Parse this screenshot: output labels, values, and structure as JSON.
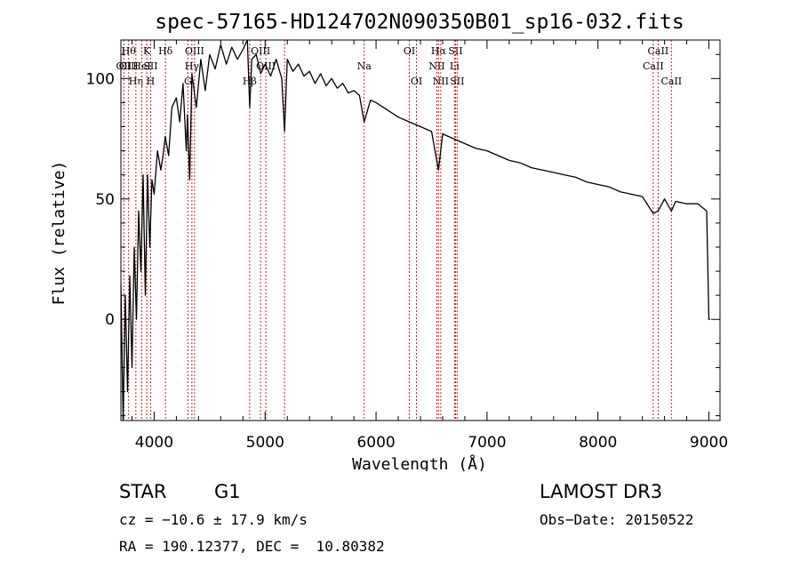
{
  "chart_data": {
    "type": "line",
    "title": "spec-57165-HD124702N090350B01_sp16-032.fits",
    "xlabel": "Wavelength (Å)",
    "ylabel": "Flux (relative)",
    "xlim": [
      3700,
      9100
    ],
    "ylim": [
      -42,
      116
    ],
    "xticks": [
      4000,
      5000,
      6000,
      7000,
      8000,
      9000
    ],
    "yticks": [
      0,
      50,
      100
    ],
    "grid": false,
    "colors": {
      "spectrum": "#000000",
      "lines": "#cc2222",
      "frame": "#000000"
    },
    "series": [
      {
        "name": "spectrum",
        "x": [
          3700,
          3720,
          3740,
          3760,
          3780,
          3800,
          3820,
          3840,
          3860,
          3880,
          3900,
          3920,
          3940,
          3960,
          3980,
          4000,
          4030,
          4060,
          4080,
          4100,
          4130,
          4160,
          4200,
          4230,
          4260,
          4290,
          4300,
          4320,
          4340,
          4380,
          4420,
          4460,
          4500,
          4550,
          4600,
          4650,
          4700,
          4750,
          4800,
          4840,
          4861,
          4880,
          4920,
          4960,
          5000,
          5050,
          5100,
          5150,
          5175,
          5200,
          5250,
          5300,
          5350,
          5400,
          5450,
          5500,
          5550,
          5600,
          5650,
          5700,
          5750,
          5800,
          5850,
          5893,
          5950,
          6000,
          6100,
          6200,
          6300,
          6400,
          6500,
          6563,
          6600,
          6700,
          6800,
          6900,
          7000,
          7100,
          7200,
          7300,
          7400,
          7500,
          7600,
          7700,
          7800,
          7900,
          8000,
          8100,
          8200,
          8300,
          8400,
          8498,
          8542,
          8600,
          8662,
          8700,
          8800,
          8900,
          8980,
          9000,
          9010
        ],
        "values": [
          15,
          -42,
          10,
          -30,
          18,
          -20,
          30,
          0,
          45,
          20,
          60,
          10,
          60,
          30,
          58,
          52,
          70,
          62,
          68,
          76,
          68,
          88,
          92,
          82,
          98,
          70,
          85,
          58,
          102,
          88,
          108,
          95,
          110,
          104,
          114,
          106,
          113,
          108,
          112,
          116,
          88,
          108,
          110,
          102,
          106,
          101,
          108,
          100,
          78,
          108,
          103,
          106,
          101,
          103,
          98,
          102,
          97,
          100,
          96,
          98,
          94,
          95,
          93,
          82,
          91,
          90,
          87,
          84,
          82,
          80,
          78,
          62,
          77,
          75,
          73,
          71,
          70,
          68,
          66,
          65,
          63,
          62,
          61,
          60,
          59,
          57,
          56,
          55,
          53,
          52,
          51,
          44,
          45,
          50,
          45,
          49,
          48,
          48,
          45,
          0,
          0
        ]
      }
    ],
    "lines": [
      {
        "x": 3727,
        "labels": [
          "OII"
        ],
        "level": 2
      },
      {
        "x": 3770,
        "labels": [
          "Hθ",
          "OIII"
        ],
        "level": 1
      },
      {
        "x": 3835,
        "labels": [
          "Hη"
        ],
        "level": 3
      },
      {
        "x": 3889,
        "labels": [
          "HeI"
        ],
        "level": 2
      },
      {
        "x": 3933,
        "labels": [
          "K"
        ],
        "level": 1
      },
      {
        "x": 3968,
        "labels": [
          "SII",
          "H"
        ],
        "level": 2
      },
      {
        "x": 4102,
        "labels": [
          "Hδ"
        ],
        "level": 1
      },
      {
        "x": 4304,
        "labels": [
          "G"
        ],
        "level": 3
      },
      {
        "x": 4340,
        "labels": [
          "Hγ"
        ],
        "level": 2
      },
      {
        "x": 4364,
        "labels": [
          "OIII"
        ],
        "level": 1
      },
      {
        "x": 4861,
        "labels": [
          "Hβ"
        ],
        "level": 3
      },
      {
        "x": 4959,
        "labels": [
          "OIII"
        ],
        "level": 1
      },
      {
        "x": 5007,
        "labels": [
          "OIII"
        ],
        "level": 2
      },
      {
        "x": 5175,
        "labels": [],
        "level": 0
      },
      {
        "x": 5893,
        "labels": [
          "Na"
        ],
        "level": 2
      },
      {
        "x": 6300,
        "labels": [
          "OI"
        ],
        "level": 1
      },
      {
        "x": 6364,
        "labels": [
          "OI"
        ],
        "level": 3
      },
      {
        "x": 6548,
        "labels": [
          "NII"
        ],
        "level": 2
      },
      {
        "x": 6563,
        "labels": [
          "Hα"
        ],
        "level": 1
      },
      {
        "x": 6583,
        "labels": [
          "NII"
        ],
        "level": 3
      },
      {
        "x": 6707,
        "labels": [
          "Li"
        ],
        "level": 2
      },
      {
        "x": 6716,
        "labels": [
          "SII"
        ],
        "level": 1
      },
      {
        "x": 6731,
        "labels": [
          "SII"
        ],
        "level": 3
      },
      {
        "x": 8498,
        "labels": [
          "CaII"
        ],
        "level": 2
      },
      {
        "x": 8542,
        "labels": [
          "CaII"
        ],
        "level": 1
      },
      {
        "x": 8662,
        "labels": [
          "CaII"
        ],
        "level": 3
      }
    ]
  },
  "info": {
    "class": "STAR",
    "subclass": "G1",
    "survey": "LAMOST DR3",
    "cz": "cz = −10.6 ± 17.9 km/s",
    "obs_date": "Obs−Date: 20150522",
    "coords": "RA = 190.12377, DEC =  10.80382"
  }
}
